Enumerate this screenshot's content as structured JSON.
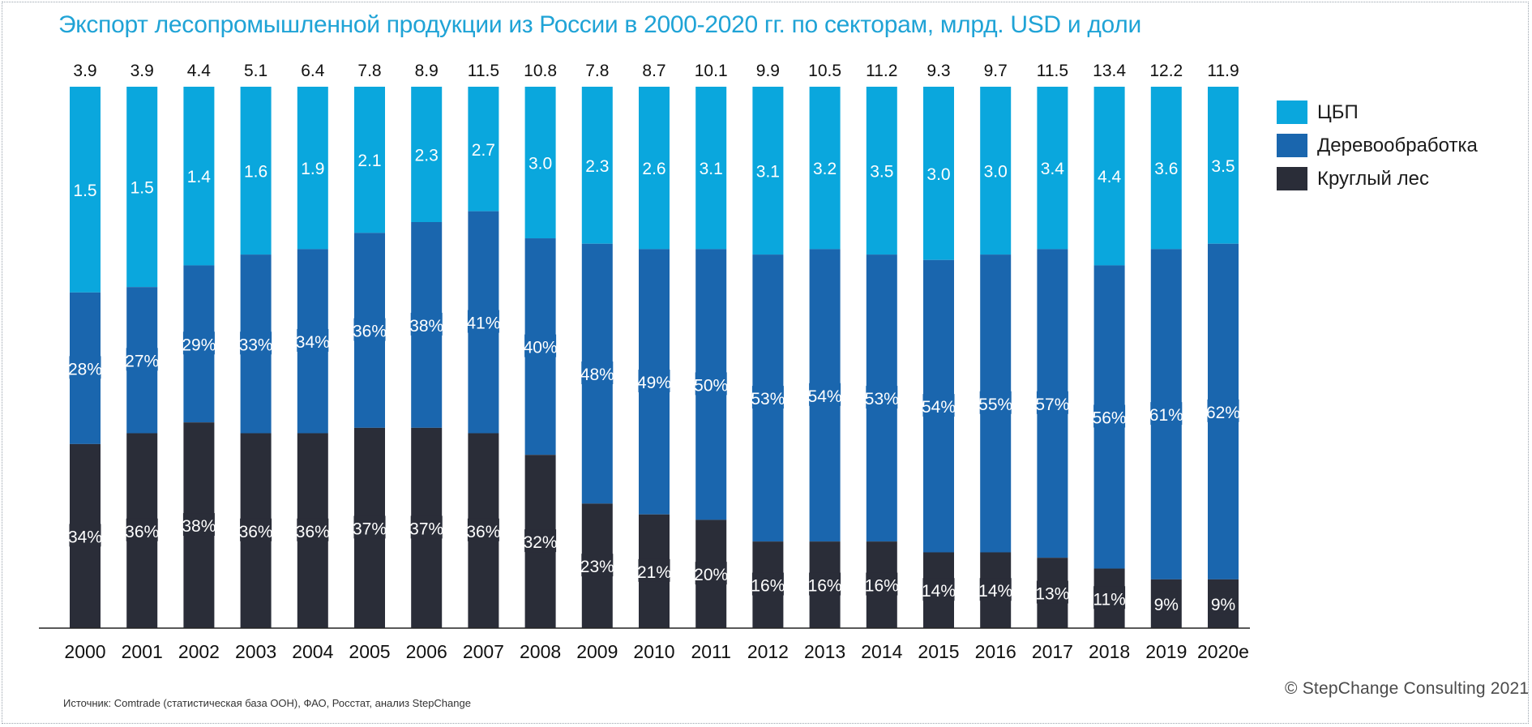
{
  "colors": {
    "paper": "#0aa7dd",
    "wood": "#1a66ae",
    "roundwood": "#2a2d38",
    "title": "#1fa3d6"
  },
  "header": {
    "title": "Экспорт лесопромышленной продукции из России в 2000-2020 гг. по секторам, млрд. USD и доли"
  },
  "footer": {
    "source": "Источник: Comtrade (статистическая база ООН), ФАО, Росстат, анализ StepChange",
    "copyright": "© StepChange Consulting 2021"
  },
  "chart_data": {
    "type": "bar",
    "stacked": true,
    "normalized_100_percent": true,
    "title": "Экспорт лесопромышленной продукции из России в 2000-2020 гг. по секторам, млрд. USD и доли",
    "categories": [
      "2000",
      "2001",
      "2002",
      "2003",
      "2004",
      "2005",
      "2006",
      "2007",
      "2008",
      "2009",
      "2010",
      "2011",
      "2012",
      "2013",
      "2014",
      "2015",
      "2016",
      "2017",
      "2018",
      "2019",
      "2020e"
    ],
    "totals": [
      "3.9",
      "3.9",
      "4.4",
      "5.1",
      "6.4",
      "7.8",
      "8.9",
      "11.5",
      "10.8",
      "7.8",
      "8.7",
      "10.1",
      "9.9",
      "10.5",
      "11.2",
      "9.3",
      "9.7",
      "11.5",
      "13.4",
      "12.2",
      "11.9"
    ],
    "series": [
      {
        "name": "Круглый лес",
        "color_key": "roundwood",
        "share_pct": [
          34,
          36,
          38,
          36,
          36,
          37,
          37,
          36,
          32,
          23,
          21,
          20,
          16,
          16,
          16,
          14,
          14,
          13,
          11,
          9,
          9
        ],
        "labels": [
          "34%",
          "36%",
          "38%",
          "36%",
          "36%",
          "37%",
          "37%",
          "36%",
          "32%",
          "23%",
          "21%",
          "20%",
          "16%",
          "16%",
          "16%",
          "14%",
          "14%",
          "13%",
          "11%",
          "9%",
          "9%"
        ]
      },
      {
        "name": "Деревообработка",
        "color_key": "wood",
        "share_pct": [
          28,
          27,
          29,
          33,
          34,
          36,
          38,
          41,
          40,
          48,
          49,
          50,
          53,
          54,
          53,
          54,
          55,
          57,
          56,
          61,
          62
        ],
        "labels": [
          "28%",
          "27%",
          "29%",
          "33%",
          "34%",
          "36%",
          "38%",
          "41%",
          "40%",
          "48%",
          "49%",
          "50%",
          "53%",
          "54%",
          "53%",
          "54%",
          "55%",
          "57%",
          "56%",
          "61%",
          "62%"
        ]
      },
      {
        "name": "ЦБП",
        "color_key": "paper",
        "share_pct": [
          38,
          37,
          33,
          31,
          30,
          27,
          25,
          23,
          28,
          29,
          30,
          30,
          31,
          30,
          31,
          32,
          31,
          30,
          33,
          30,
          29
        ],
        "values": [
          "1.5",
          "1.5",
          "1.4",
          "1.6",
          "1.9",
          "2.1",
          "2.3",
          "2.7",
          "3.0",
          "2.3",
          "2.6",
          "3.1",
          "3.1",
          "3.2",
          "3.5",
          "3.0",
          "3.0",
          "3.4",
          "4.4",
          "3.6",
          "3.5"
        ]
      }
    ],
    "legend": {
      "position": "right",
      "items": [
        {
          "label": "ЦБП",
          "color_key": "paper"
        },
        {
          "label": "Деревообработка",
          "color_key": "wood"
        },
        {
          "label": "Круглый лес",
          "color_key": "roundwood"
        }
      ]
    },
    "ylim": [
      0,
      100
    ],
    "grid": false
  }
}
